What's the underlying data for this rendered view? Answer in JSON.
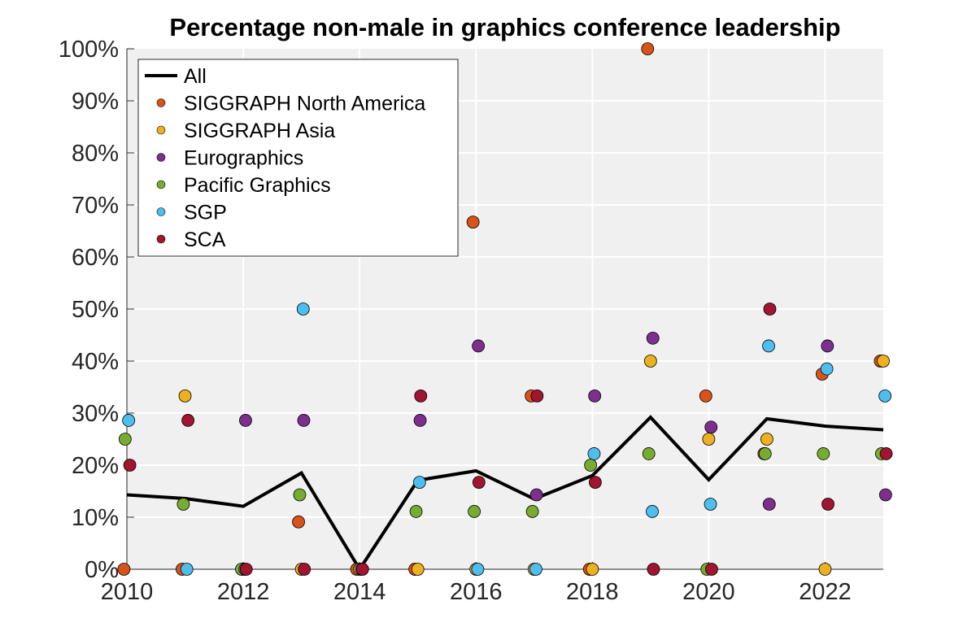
{
  "chart_data": {
    "type": "scatter",
    "title": "Percentage non-male in graphics conference leadership",
    "xlabel": "",
    "ylabel": "",
    "xlim": [
      2010,
      2023
    ],
    "ylim": [
      0,
      100
    ],
    "x_ticks": [
      "2010",
      "2012",
      "2014",
      "2016",
      "2018",
      "2020",
      "2022"
    ],
    "y_ticks": [
      "0%",
      "10%",
      "20%",
      "30%",
      "40%",
      "50%",
      "60%",
      "70%",
      "80%",
      "90%",
      "100%"
    ],
    "grid": true,
    "legend_position": "top-left",
    "line_series": {
      "name": "All",
      "color": "#000000",
      "x": [
        2010,
        2011,
        2012,
        2013,
        2014,
        2015,
        2016,
        2017,
        2018,
        2019,
        2020,
        2021,
        2022,
        2023
      ],
      "y": [
        14.3,
        13.6,
        12.1,
        18.5,
        0.0,
        17.1,
        18.9,
        13.5,
        18.0,
        29.2,
        17.2,
        28.9,
        27.5,
        26.8
      ]
    },
    "series": [
      {
        "name": "SIGGRAPH North America",
        "color": "#D95319",
        "points": [
          [
            2010,
            0
          ],
          [
            2011,
            0
          ],
          [
            2013,
            9.1
          ],
          [
            2014,
            0
          ],
          [
            2015,
            0
          ],
          [
            2016,
            66.7
          ],
          [
            2017,
            33.3
          ],
          [
            2018,
            0
          ],
          [
            2019,
            100
          ],
          [
            2020,
            33.3
          ],
          [
            2021,
            22.2
          ],
          [
            2022,
            37.5
          ],
          [
            2023,
            40
          ]
        ]
      },
      {
        "name": "SIGGRAPH Asia",
        "color": "#EDB120",
        "points": [
          [
            2011,
            33.3
          ],
          [
            2012,
            0
          ],
          [
            2013,
            0
          ],
          [
            2014,
            0
          ],
          [
            2015,
            0
          ],
          [
            2016,
            0
          ],
          [
            2017,
            0
          ],
          [
            2018,
            0
          ],
          [
            2019,
            40
          ],
          [
            2020,
            25
          ],
          [
            2021,
            25
          ],
          [
            2022,
            0
          ],
          [
            2023,
            40
          ]
        ]
      },
      {
        "name": "Eurographics",
        "color": "#7E2F8E",
        "points": [
          [
            2012,
            28.6
          ],
          [
            2013,
            28.6
          ],
          [
            2015,
            28.6
          ],
          [
            2016,
            42.9
          ],
          [
            2017,
            14.3
          ],
          [
            2018,
            33.3
          ],
          [
            2019,
            44.4
          ],
          [
            2020,
            27.3
          ],
          [
            2021,
            12.5
          ],
          [
            2022,
            42.9
          ],
          [
            2023,
            14.3
          ]
        ]
      },
      {
        "name": "Pacific Graphics",
        "color": "#77AC30",
        "points": [
          [
            2010,
            25
          ],
          [
            2011,
            12.5
          ],
          [
            2012,
            0
          ],
          [
            2013,
            14.3
          ],
          [
            2015,
            11.1
          ],
          [
            2016,
            11.1
          ],
          [
            2017,
            11.1
          ],
          [
            2018,
            20
          ],
          [
            2019,
            22.2
          ],
          [
            2020,
            0
          ],
          [
            2021,
            22.2
          ],
          [
            2022,
            22.2
          ],
          [
            2023,
            22.2
          ]
        ]
      },
      {
        "name": "SGP",
        "color": "#4DBEEE",
        "points": [
          [
            2010,
            28.6
          ],
          [
            2011,
            0
          ],
          [
            2012,
            0
          ],
          [
            2013,
            50
          ],
          [
            2014,
            0
          ],
          [
            2015,
            16.7
          ],
          [
            2016,
            0
          ],
          [
            2017,
            0
          ],
          [
            2018,
            22.2
          ],
          [
            2019,
            11.1
          ],
          [
            2020,
            12.5
          ],
          [
            2021,
            42.9
          ],
          [
            2022,
            38.5
          ],
          [
            2023,
            33.3
          ]
        ]
      },
      {
        "name": "SCA",
        "color": "#A2142F",
        "points": [
          [
            2010,
            20
          ],
          [
            2011,
            28.6
          ],
          [
            2012,
            0
          ],
          [
            2013,
            0
          ],
          [
            2014,
            0
          ],
          [
            2015,
            33.3
          ],
          [
            2016,
            16.7
          ],
          [
            2017,
            33.3
          ],
          [
            2018,
            16.7
          ],
          [
            2019,
            0
          ],
          [
            2020,
            0
          ],
          [
            2021,
            50
          ],
          [
            2022,
            12.5
          ],
          [
            2023,
            22.2
          ]
        ]
      }
    ]
  }
}
